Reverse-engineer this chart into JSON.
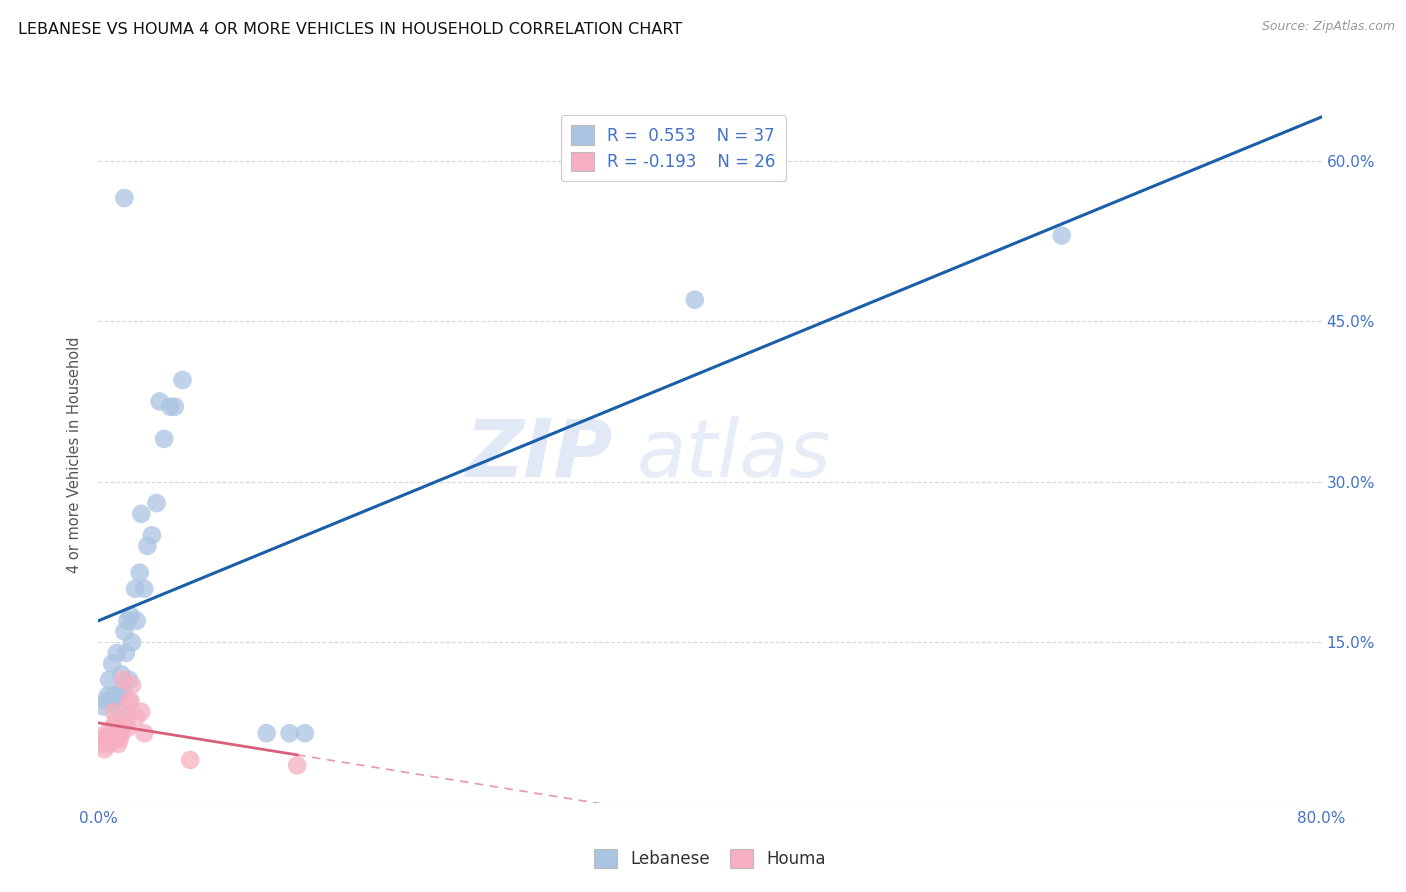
{
  "title": "LEBANESE VS HOUMA 4 OR MORE VEHICLES IN HOUSEHOLD CORRELATION CHART",
  "source": "Source: ZipAtlas.com",
  "ylabel": "4 or more Vehicles in Household",
  "watermark_zip": "ZIP",
  "watermark_atlas": "atlas",
  "xlim": [
    0.0,
    0.8
  ],
  "ylim": [
    0.0,
    0.65
  ],
  "xticks": [
    0.0,
    0.1,
    0.2,
    0.3,
    0.4,
    0.5,
    0.6,
    0.7,
    0.8
  ],
  "xticklabels": [
    "0.0%",
    "",
    "",
    "",
    "",
    "",
    "",
    "",
    "80.0%"
  ],
  "yticks": [
    0.0,
    0.15,
    0.3,
    0.45,
    0.6
  ],
  "yticklabels_right": [
    "",
    "15.0%",
    "30.0%",
    "45.0%",
    "60.0%"
  ],
  "legend_R1": "R =  0.553",
  "legend_N1": "N = 37",
  "legend_R2": "R = -0.193",
  "legend_N2": "N = 26",
  "legend_label1": "Lebanese",
  "legend_label2": "Houma",
  "color_lebanese": "#aac4e2",
  "color_houma": "#f5afc0",
  "color_line_lebanese": "#1a5fa8",
  "color_line_houma": "#d9607a",
  "color_blue_text": "#4472c4",
  "color_title": "#222222",
  "lebanese_x": [
    0.003,
    0.005,
    0.006,
    0.007,
    0.008,
    0.009,
    0.01,
    0.011,
    0.012,
    0.013,
    0.014,
    0.015,
    0.016,
    0.017,
    0.018,
    0.019,
    0.02,
    0.021,
    0.022,
    0.024,
    0.025,
    0.027,
    0.028,
    0.03,
    0.032,
    0.035,
    0.038,
    0.04,
    0.043,
    0.047,
    0.05,
    0.055,
    0.11,
    0.125,
    0.135,
    0.39,
    0.63
  ],
  "lebanese_y": [
    0.09,
    0.095,
    0.1,
    0.115,
    0.095,
    0.13,
    0.1,
    0.095,
    0.14,
    0.1,
    0.085,
    0.12,
    0.105,
    0.16,
    0.14,
    0.17,
    0.115,
    0.175,
    0.15,
    0.2,
    0.17,
    0.215,
    0.27,
    0.2,
    0.24,
    0.25,
    0.28,
    0.375,
    0.34,
    0.37,
    0.37,
    0.395,
    0.065,
    0.065,
    0.065,
    0.47,
    0.53
  ],
  "lebanese_x_outlier_high": [
    0.017
  ],
  "lebanese_y_outlier_high": [
    0.565
  ],
  "houma_x": [
    0.002,
    0.003,
    0.004,
    0.005,
    0.006,
    0.007,
    0.008,
    0.009,
    0.01,
    0.011,
    0.012,
    0.013,
    0.014,
    0.015,
    0.016,
    0.017,
    0.018,
    0.019,
    0.02,
    0.021,
    0.022,
    0.025,
    0.028,
    0.03,
    0.06,
    0.13
  ],
  "houma_y": [
    0.055,
    0.06,
    0.05,
    0.065,
    0.06,
    0.055,
    0.06,
    0.07,
    0.085,
    0.075,
    0.06,
    0.055,
    0.06,
    0.065,
    0.115,
    0.075,
    0.08,
    0.07,
    0.095,
    0.095,
    0.11,
    0.08,
    0.085,
    0.065,
    0.04,
    0.035
  ],
  "background_color": "#ffffff",
  "grid_color": "#d8d8d8"
}
